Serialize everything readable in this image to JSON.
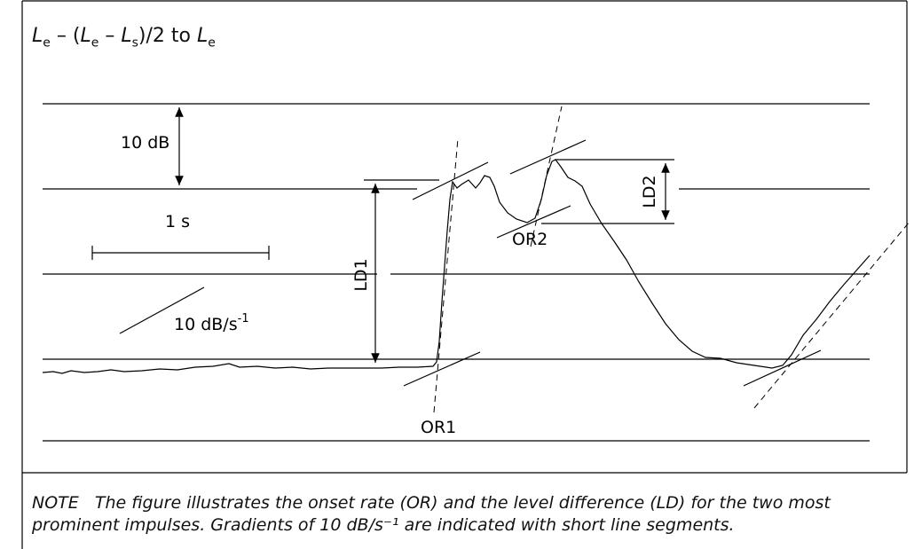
{
  "title": {
    "parts": [
      "L",
      "e",
      " – (",
      "L",
      "e",
      " – ",
      "L",
      "s",
      ")/2 to ",
      "L",
      "e"
    ]
  },
  "labels": {
    "level_step": "10 dB",
    "time_step": "1 s",
    "gradient": "10 dB/s",
    "gradient_exponent": "-1",
    "ld1": "LD1",
    "ld2": "LD2",
    "or1": "OR1",
    "or2": "OR2"
  },
  "note": "NOTE   The figure illustrates the onset rate (OR) and the level difference (LD) for the two most prominent impulses. Gradients of 10 dB/s⁻¹ are indicated with short line segments."
}
